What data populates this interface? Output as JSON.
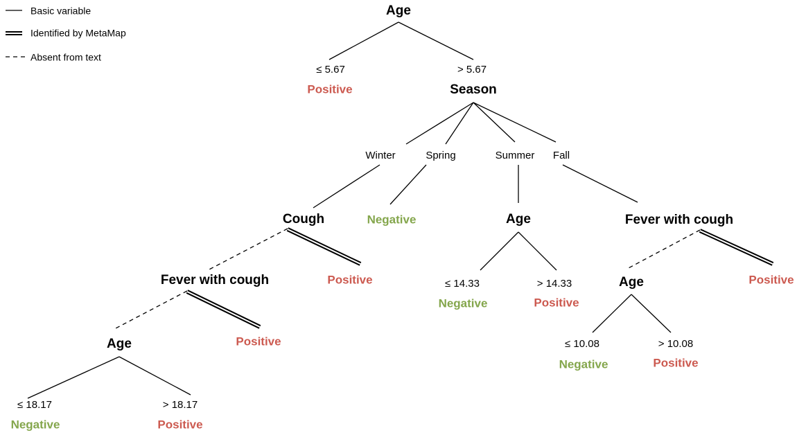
{
  "legend": [
    "Basic variable",
    "Identified by MetaMap",
    "Absent from text"
  ],
  "nodes": [
    "Age",
    "Season",
    "Cough",
    "Age",
    "Fever with cough",
    "Fever with cough",
    "Age",
    "Age"
  ],
  "branches": [
    "≤ 5.67",
    "> 5.67",
    "Winter",
    "Spring",
    "Summer",
    "Fall",
    "≤ 14.33",
    "> 14.33",
    "≤ 10.08",
    "> 10.08",
    "≤ 18.17",
    "> 18.17"
  ],
  "leaves": [
    "Positive",
    "Negative",
    "Positive",
    "Negative",
    "Positive",
    "Positive",
    "Positive",
    "Negative",
    "Positive",
    "Negative",
    "Positive"
  ]
}
